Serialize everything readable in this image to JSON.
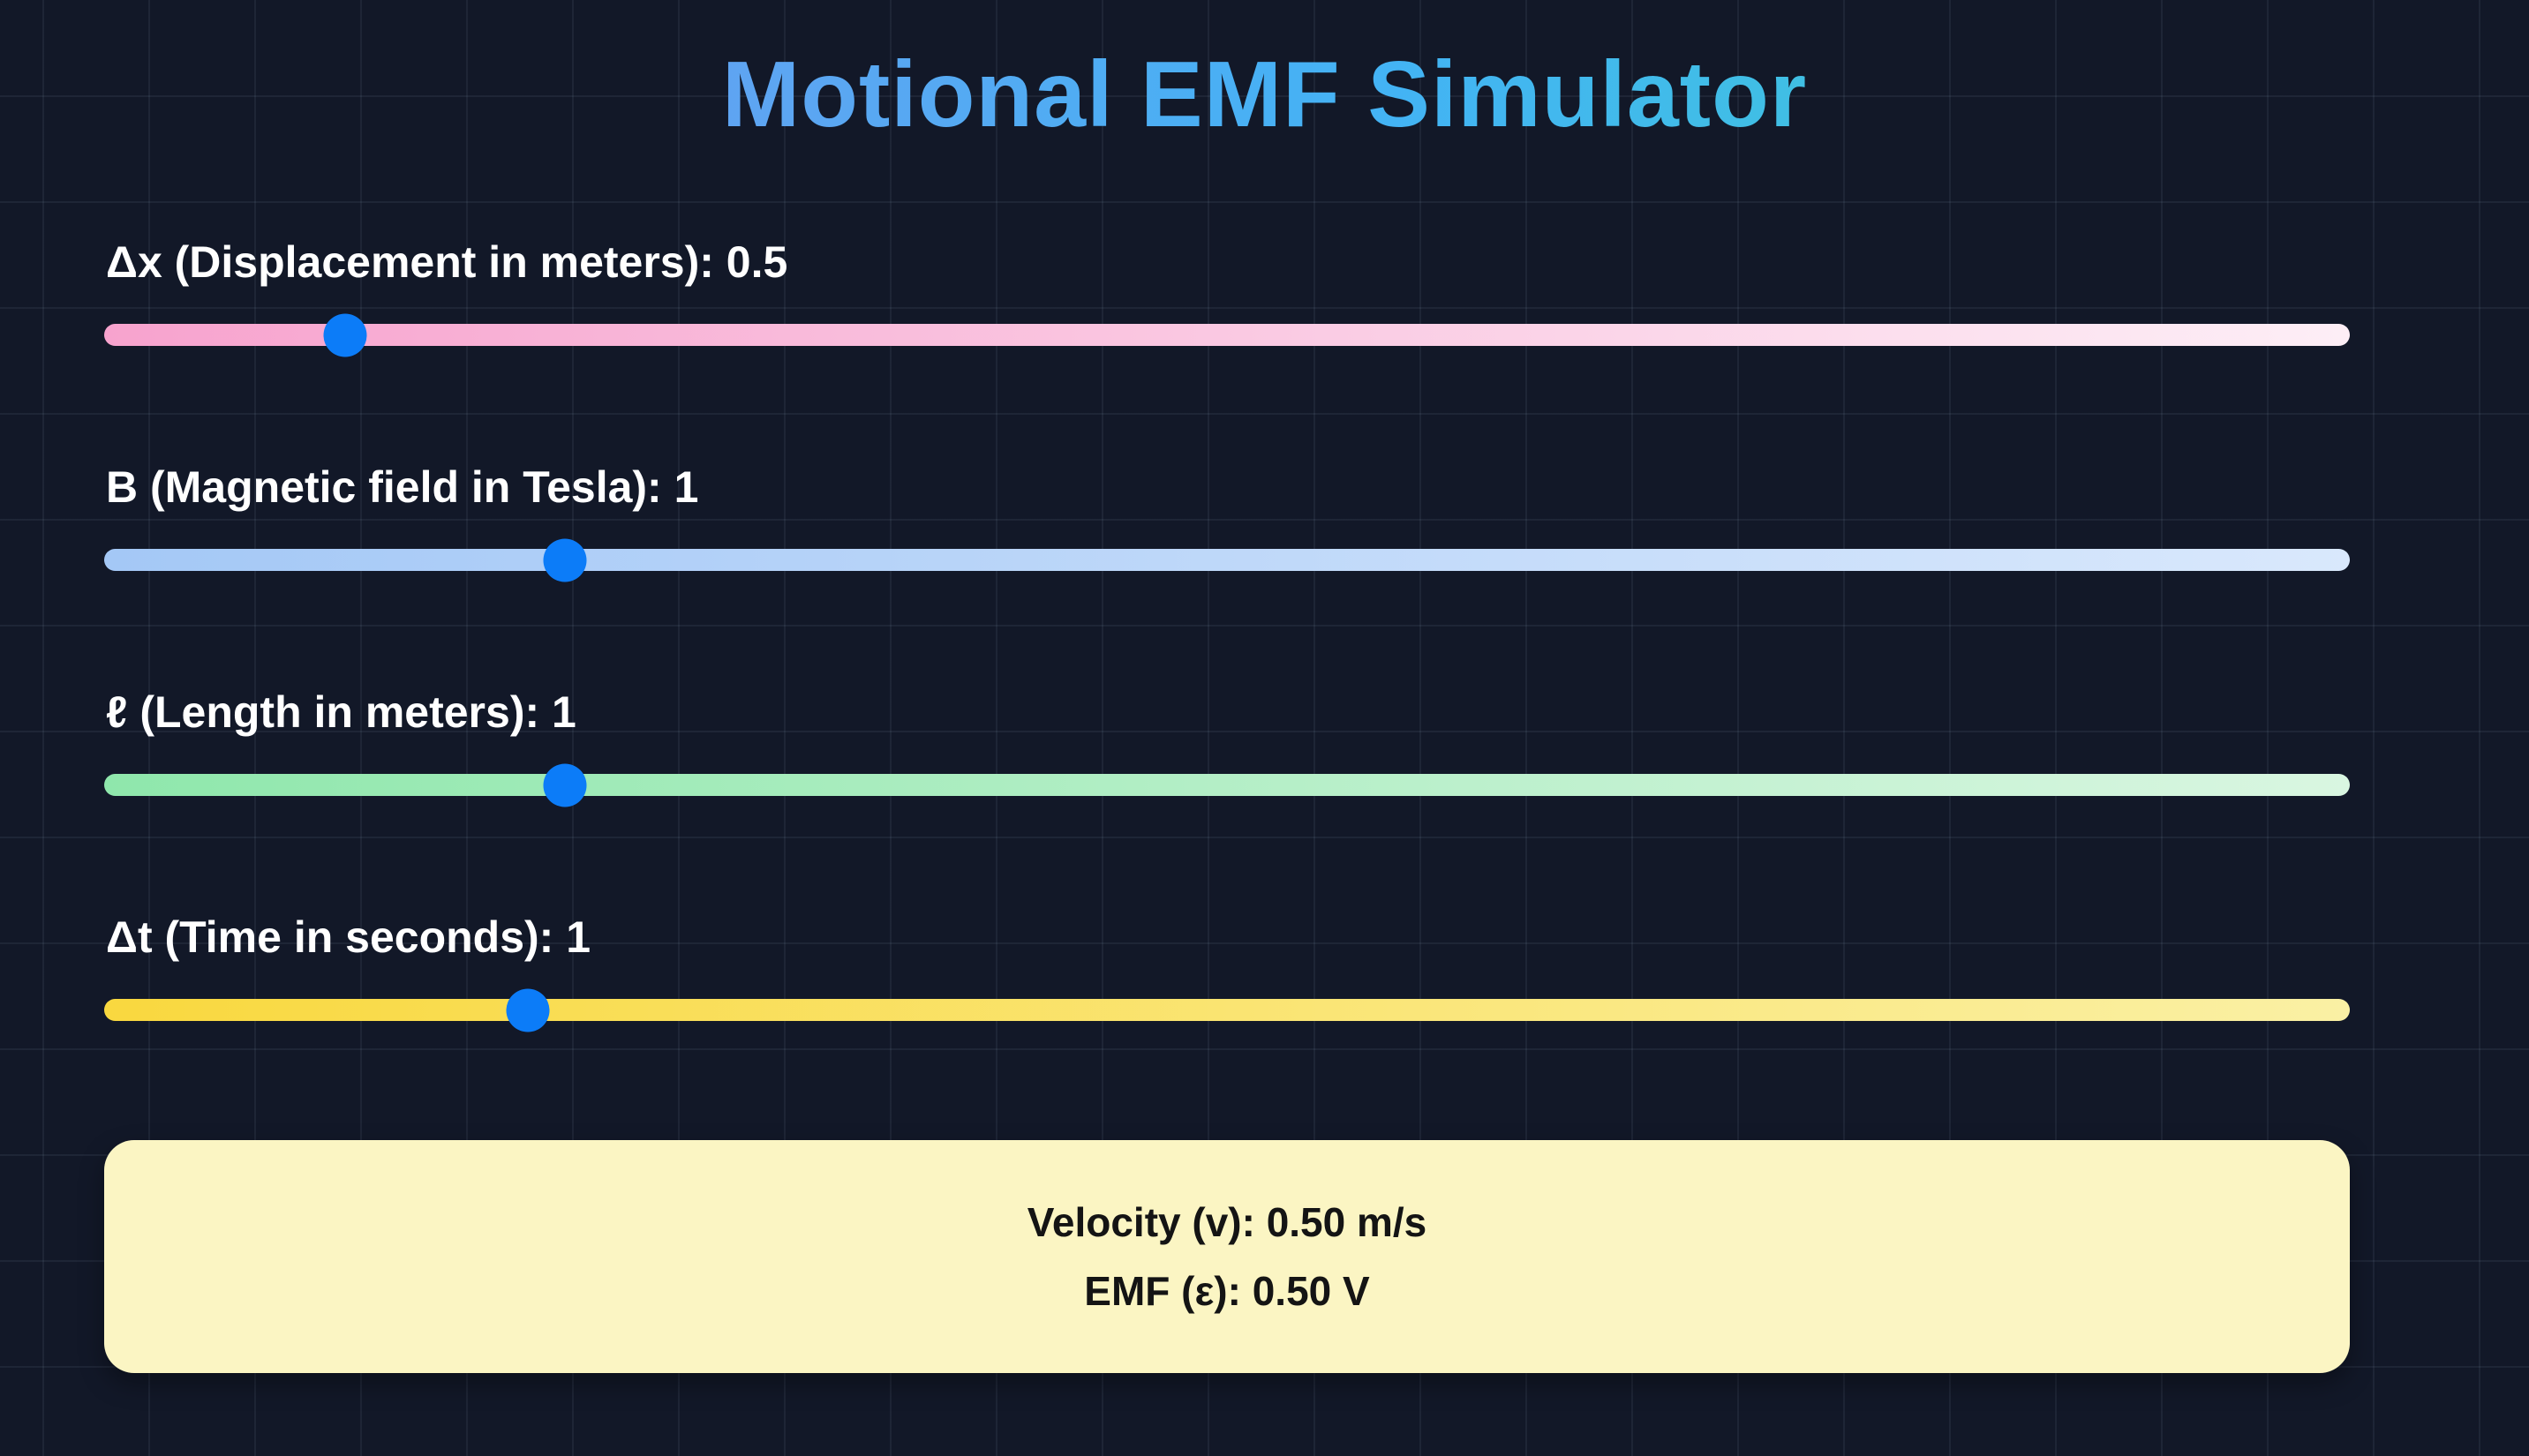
{
  "title": "Motional EMF Simulator",
  "theme": {
    "background": "#121828",
    "thumb_color": "#0c7cf8",
    "result_panel_bg": "#fbf5c3",
    "title_gradient": [
      "#8a8ff0",
      "#43b3f4",
      "#3bd4c8"
    ]
  },
  "sliders": [
    {
      "name": "displacement",
      "label": "Δx (Displacement in meters): 0.5",
      "value": "0.5",
      "percent": 10.74,
      "track_start": "#f7a3ce",
      "track_end": "#fdeef6"
    },
    {
      "name": "magnetic-field",
      "label": "B (Magnetic field in Tesla): 1",
      "value": "1",
      "percent": 20.53,
      "track_start": "#a4c8f6",
      "track_end": "#d9e8fc"
    },
    {
      "name": "length",
      "label": "ℓ (Length in meters): 1",
      "value": "1",
      "percent": 20.53,
      "track_start": "#8fe7ac",
      "track_end": "#d9f6e1"
    },
    {
      "name": "time",
      "label": "Δt (Time in seconds): 1",
      "value": "1",
      "percent": 18.88,
      "track_start": "#f9d83f",
      "track_end": "#faf0a4"
    }
  ],
  "results": {
    "velocity": "Velocity (v): 0.50 m/s",
    "emf": "EMF (ε): 0.50 V"
  }
}
